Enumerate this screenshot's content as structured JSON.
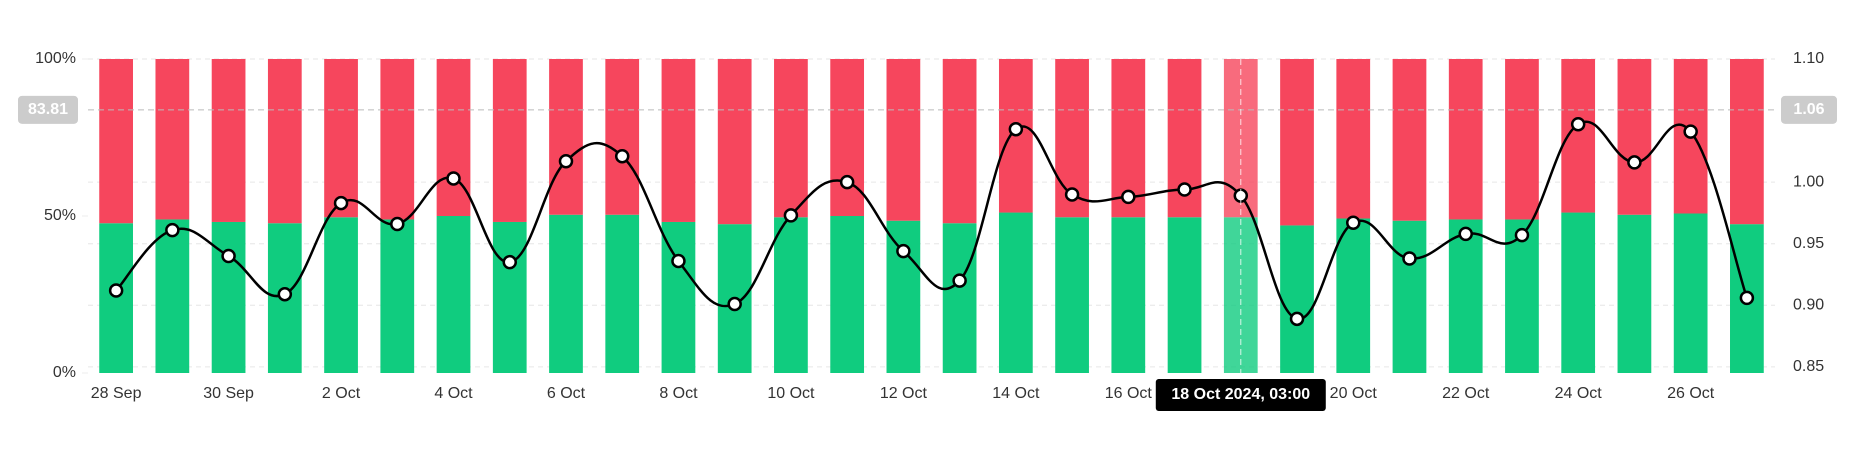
{
  "chart_data": {
    "type": "stacked-bar-line",
    "categories": [
      "28 Sep",
      null,
      "30 Sep",
      null,
      "2 Oct",
      null,
      "4 Oct",
      null,
      "6 Oct",
      null,
      "8 Oct",
      null,
      "10 Oct",
      null,
      "12 Oct",
      null,
      "14 Oct",
      null,
      "16 Oct",
      null,
      null,
      null,
      "20 Oct",
      null,
      "22 Oct",
      null,
      "24 Oct",
      null,
      "26 Oct",
      null
    ],
    "series": [
      {
        "color": "#10cc7f",
        "values": [
          47.7,
          48.9,
          48.1,
          47.7,
          49.6,
          48.9,
          50,
          48.1,
          50.4,
          50.4,
          48.1,
          47.4,
          49.6,
          50,
          48.5,
          47.7,
          51.1,
          49.6,
          49.6,
          49.6,
          49.6,
          47,
          49.2,
          48.5,
          48.9,
          48.9,
          51.1,
          50.4,
          50.8,
          47.4
        ]
      },
      {
        "color": "#f6465d",
        "values": [
          52.3,
          51.1,
          51.9,
          52.3,
          50.4,
          51.1,
          50,
          51.9,
          49.6,
          49.6,
          51.9,
          52.6,
          50.4,
          50,
          51.5,
          52.3,
          48.9,
          50.4,
          50.4,
          50.4,
          50.4,
          53,
          50.8,
          51.5,
          51.1,
          51.1,
          48.9,
          49.6,
          49.2,
          52.6
        ]
      },
      {
        "color": "#000000",
        "axis": "y2",
        "values": [
          0.912,
          0.961,
          0.94,
          0.909,
          0.983,
          0.966,
          1.003,
          0.935,
          1.017,
          1.021,
          0.936,
          0.901,
          0.973,
          1.0,
          0.944,
          0.92,
          1.043,
          0.99,
          0.988,
          0.994,
          0.989,
          0.889,
          0.967,
          0.938,
          0.958,
          0.957,
          1.047,
          1.016,
          1.041,
          0.906
        ]
      }
    ],
    "ylim": [
      0,
      100
    ],
    "yticks": [
      {
        "value": 0,
        "label": "0%"
      },
      {
        "value": 50,
        "label": "50%"
      },
      {
        "value": 100,
        "label": "100%"
      }
    ],
    "y2lim": [
      0.845,
      1.1
    ],
    "y2ticks": [
      {
        "value": 0.85,
        "label": "0.85"
      },
      {
        "value": 0.9,
        "label": "0.90"
      },
      {
        "value": 0.95,
        "label": "0.95"
      },
      {
        "value": 1,
        "label": "1.00"
      },
      {
        "value": 1.1,
        "label": "1.10"
      }
    ],
    "grid": true,
    "crosshair": {
      "index": 20,
      "tooltip": "18 Oct 2024, 03:00",
      "y": 83.81,
      "y2": 1.06
    }
  }
}
